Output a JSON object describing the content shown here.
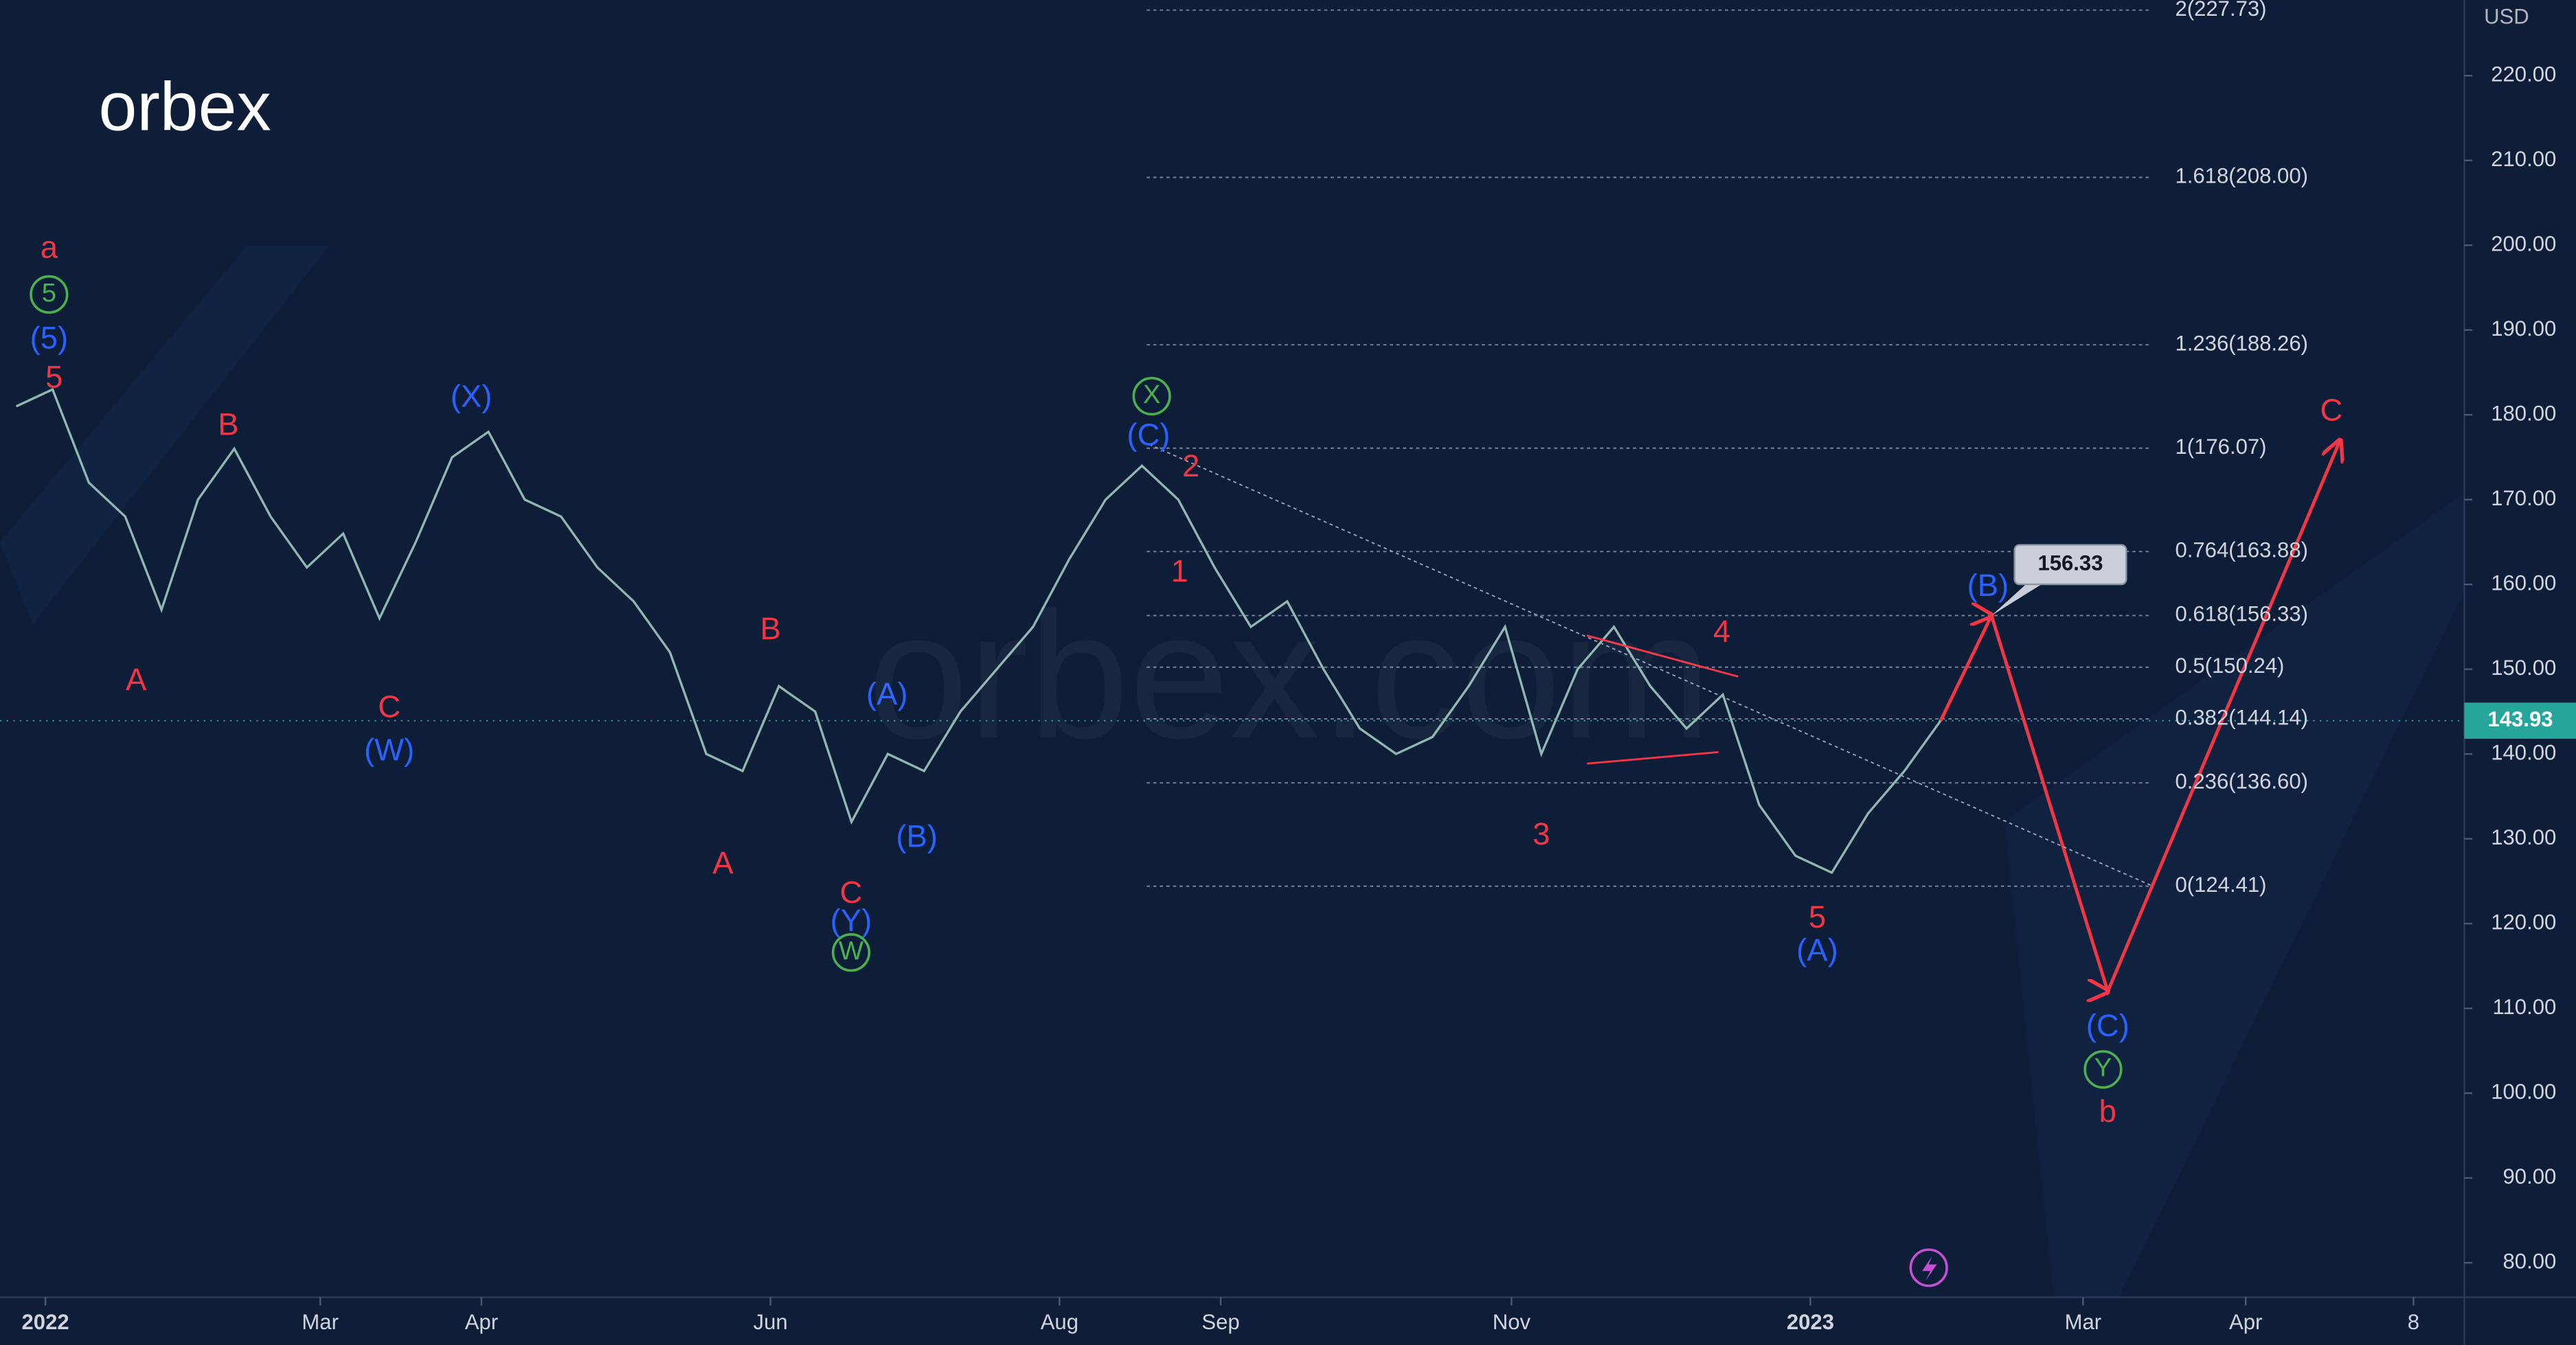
{
  "chart_data": {
    "type": "line",
    "logo": "orbex",
    "watermark": "orbex.com",
    "unit": "USD",
    "xlim": [
      -0.45,
      67.42
    ],
    "ylim": [
      75.93,
      228.91
    ],
    "xticks": [
      {
        "value": 0.8,
        "label": "2022"
      },
      {
        "value": 8.37,
        "label": "Mar"
      },
      {
        "value": 12.81,
        "label": "Apr"
      },
      {
        "value": 20.77,
        "label": "Jun"
      },
      {
        "value": 28.73,
        "label": "Aug"
      },
      {
        "value": 33.17,
        "label": "Sep"
      },
      {
        "value": 41.18,
        "label": "Nov"
      },
      {
        "value": 49.41,
        "label": "2023"
      },
      {
        "value": 56.92,
        "label": "Mar"
      },
      {
        "value": 61.4,
        "label": "Apr"
      },
      {
        "value": 66.02,
        "label": "8"
      }
    ],
    "yticks": [
      {
        "value": 80,
        "label": "80.00"
      },
      {
        "value": 90,
        "label": "90.00"
      },
      {
        "value": 100,
        "label": "100.00"
      },
      {
        "value": 110,
        "label": "110.00"
      },
      {
        "value": 120,
        "label": "120.00"
      },
      {
        "value": 130,
        "label": "130.00"
      },
      {
        "value": 140,
        "label": "140.00"
      },
      {
        "value": 150,
        "label": "150.00"
      },
      {
        "value": 160,
        "label": "160.00"
      },
      {
        "value": 170,
        "label": "170.00"
      },
      {
        "value": 180,
        "label": "180.00"
      },
      {
        "value": 190,
        "label": "190.00"
      },
      {
        "value": 200,
        "label": "200.00"
      },
      {
        "value": 210,
        "label": "210.00"
      },
      {
        "value": 220,
        "label": "220.00"
      }
    ],
    "series": [
      {
        "color": "#8fb8b0",
        "x": [
          0,
          1,
          2,
          3,
          4,
          5,
          6,
          7,
          8,
          9,
          10,
          11,
          12,
          13,
          14,
          15,
          16,
          17,
          18,
          19,
          20,
          21,
          22,
          23,
          24,
          25,
          26,
          27,
          28,
          29,
          30,
          31,
          32,
          33,
          34,
          35,
          36,
          37,
          38,
          39,
          40,
          41,
          42,
          43,
          44,
          45,
          46,
          47,
          48,
          49,
          50,
          51,
          52,
          53
        ],
        "values": [
          181,
          183,
          172,
          168,
          157,
          170,
          176,
          168,
          162,
          166,
          156,
          165,
          175,
          178,
          170,
          168,
          162,
          158,
          152,
          140,
          138,
          148,
          145,
          132,
          140,
          138,
          145,
          150,
          155,
          163,
          170,
          174,
          170,
          162,
          155,
          158,
          150,
          143,
          140,
          142,
          148,
          155,
          140,
          150,
          155,
          148,
          143,
          147,
          134,
          128,
          126,
          133,
          138,
          143.93
        ]
      },
      {
        "color": "#f23645",
        "x": [
          53,
          54.4,
          57.6,
          64.0
        ],
        "values": [
          143.93,
          156.33,
          112,
          177
        ]
      },
      {
        "color": "#9aa3b5",
        "x": [
          31.2,
          58.8
        ],
        "values": [
          176.5,
          124.5
        ]
      }
    ],
    "fib_x": [
      31.13,
      58.8
    ],
    "fib_levels": [
      {
        "label": "2(227.73)",
        "value": 227.73
      },
      {
        "label": "1.618(208.00)",
        "value": 208
      },
      {
        "label": "1.236(188.26)",
        "value": 188.26
      },
      {
        "label": "1(176.07)",
        "value": 176.07
      },
      {
        "label": "0.764(163.88)",
        "value": 163.88
      },
      {
        "label": "0.618(156.33)",
        "value": 156.33
      },
      {
        "label": "0.5(150.24)",
        "value": 150.24
      },
      {
        "label": "0.382(144.14)",
        "value": 144.14
      },
      {
        "label": "0.236(136.60)",
        "value": 136.6
      },
      {
        "label": "0(124.41)",
        "value": 124.41
      }
    ],
    "annotations": [
      {
        "text": "a",
        "color": "#f23645",
        "x": 0.9,
        "y": 199.5
      },
      {
        "text": "5",
        "color": "#4caf50",
        "x": 0.9,
        "y": 194.2,
        "circle": true
      },
      {
        "text": "(5)",
        "color": "#2962ff",
        "x": 0.9,
        "y": 188.8
      },
      {
        "text": "5",
        "color": "#f23645",
        "x": 1.04,
        "y": 184.2
      },
      {
        "text": "A",
        "color": "#f23645",
        "x": 3.3,
        "y": 148.5
      },
      {
        "text": "B",
        "color": "#f23645",
        "x": 5.84,
        "y": 178.6
      },
      {
        "text": "C",
        "color": "#f23645",
        "x": 10.27,
        "y": 145.3
      },
      {
        "text": "(W)",
        "color": "#2962ff",
        "x": 10.27,
        "y": 140.2
      },
      {
        "text": "(X)",
        "color": "#2962ff",
        "x": 12.53,
        "y": 181.9
      },
      {
        "text": "A",
        "color": "#f23645",
        "x": 19.46,
        "y": 126.9
      },
      {
        "text": "B",
        "color": "#f23645",
        "x": 20.77,
        "y": 154.5
      },
      {
        "text": "(A)",
        "color": "#2962ff",
        "x": 23.98,
        "y": 146.8
      },
      {
        "text": "(B)",
        "color": "#2962ff",
        "x": 24.8,
        "y": 130
      },
      {
        "text": "C",
        "color": "#f23645",
        "x": 22.99,
        "y": 123.4
      },
      {
        "text": "(Y)",
        "color": "#2962ff",
        "x": 22.99,
        "y": 120.1
      },
      {
        "text": "W",
        "color": "#4caf50",
        "x": 22.99,
        "y": 116.6,
        "circle": true
      },
      {
        "text": "X",
        "color": "#4caf50",
        "x": 31.27,
        "y": 182.2,
        "circle": true
      },
      {
        "text": "(C)",
        "color": "#2962ff",
        "x": 31.18,
        "y": 177.4
      },
      {
        "text": "2",
        "color": "#f23645",
        "x": 32.35,
        "y": 173.7
      },
      {
        "text": "1",
        "color": "#f23645",
        "x": 32.04,
        "y": 161.3
      },
      {
        "text": "3",
        "color": "#f23645",
        "x": 42,
        "y": 130.3
      },
      {
        "text": "4",
        "color": "#f23645",
        "x": 46.97,
        "y": 154.2
      },
      {
        "text": "5",
        "color": "#f23645",
        "x": 49.6,
        "y": 120.5
      },
      {
        "text": "(A)",
        "color": "#2962ff",
        "x": 49.6,
        "y": 116.6
      },
      {
        "text": "(B)",
        "color": "#2962ff",
        "x": 54.3,
        "y": 159.6
      },
      {
        "text": "C",
        "color": "#f23645",
        "x": 63.76,
        "y": 180.3
      },
      {
        "text": "(C)",
        "color": "#2962ff",
        "x": 57.6,
        "y": 107.7
      },
      {
        "text": "Y",
        "color": "#4caf50",
        "x": 57.47,
        "y": 102.8,
        "circle": true
      },
      {
        "text": "b",
        "color": "#f23645",
        "x": 57.6,
        "y": 97.6
      }
    ]
  }
}
